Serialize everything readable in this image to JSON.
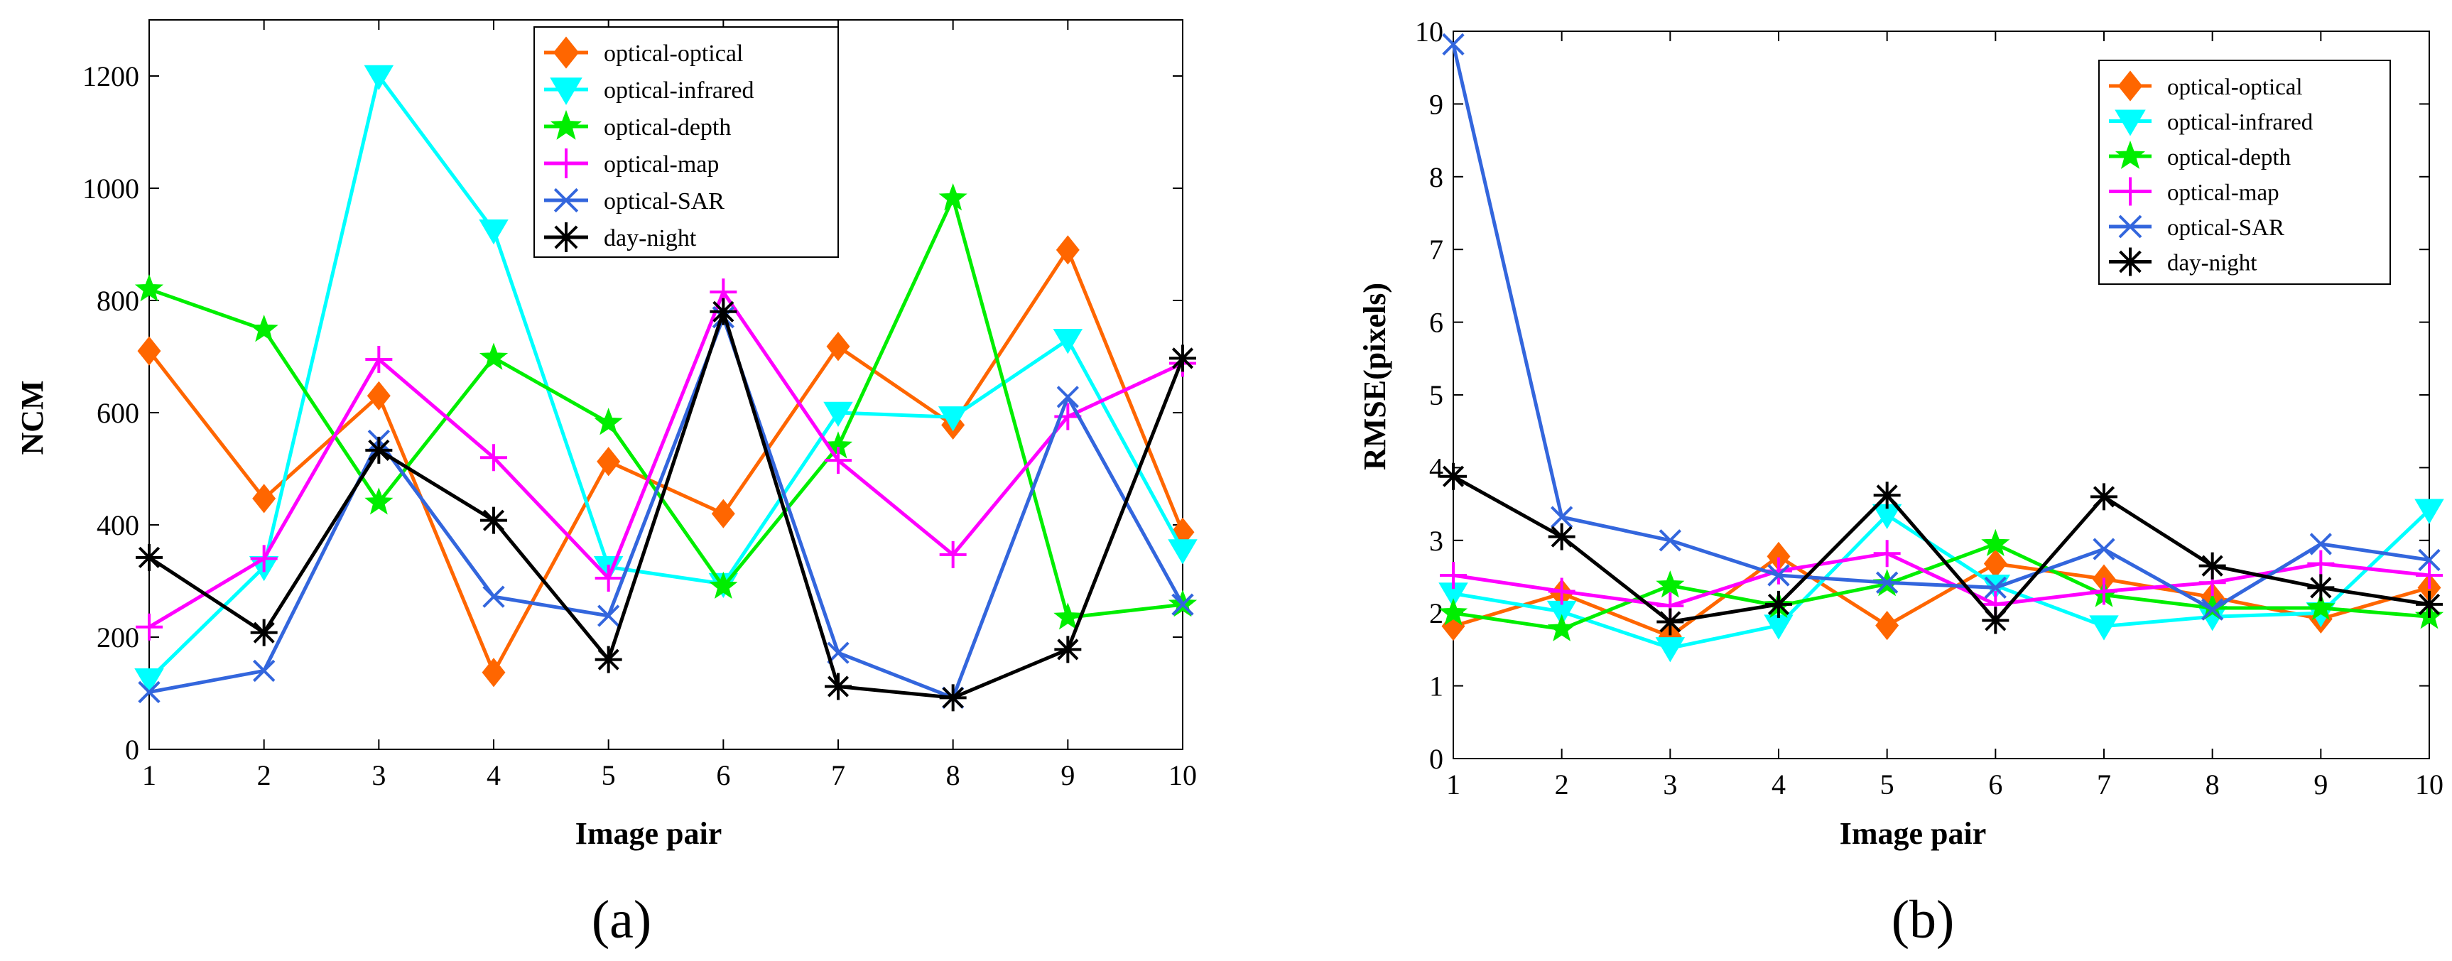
{
  "colors": {
    "optical-optical": "#ff6600",
    "optical-infrared": "#00ffff",
    "optical-depth": "#00ee00",
    "optical-map": "#ff00ff",
    "optical-SAR": "#3366dd",
    "day-night": "#000000"
  },
  "chart_data": [
    {
      "type": "line",
      "subfigure_label": "(a)",
      "title": "",
      "xlabel": "Image pair",
      "ylabel": "NCM",
      "xlim": [
        1,
        10
      ],
      "ylim": [
        0,
        1300
      ],
      "x_ticks": [
        "1",
        "2",
        "3",
        "4",
        "5",
        "6",
        "7",
        "8",
        "9",
        "10"
      ],
      "y_ticks": [
        "0",
        "200",
        "400",
        "600",
        "800",
        "1000",
        "1200"
      ],
      "y_tick_values": [
        0,
        200,
        400,
        600,
        800,
        1000,
        1200
      ],
      "legend_position": "top-center",
      "x": [
        1,
        2,
        3,
        4,
        5,
        6,
        7,
        8,
        9,
        10
      ],
      "series": [
        {
          "name": "optical-optical",
          "marker": "diamond",
          "values": [
            710,
            447,
            630,
            137,
            513,
            420,
            718,
            578,
            890,
            387
          ]
        },
        {
          "name": "optical-infrared",
          "marker": "triangle-down",
          "values": [
            125,
            325,
            1200,
            925,
            325,
            295,
            600,
            592,
            730,
            355
          ]
        },
        {
          "name": "optical-depth",
          "marker": "star5",
          "values": [
            820,
            748,
            440,
            698,
            582,
            290,
            540,
            982,
            235,
            258
          ]
        },
        {
          "name": "optical-map",
          "marker": "plus",
          "values": [
            218,
            340,
            695,
            520,
            305,
            815,
            515,
            347,
            593,
            688
          ]
        },
        {
          "name": "optical-SAR",
          "marker": "x",
          "values": [
            102,
            140,
            550,
            272,
            238,
            770,
            172,
            92,
            628,
            258
          ]
        },
        {
          "name": "day-night",
          "marker": "asterisk",
          "values": [
            342,
            208,
            533,
            408,
            160,
            780,
            112,
            92,
            178,
            697
          ]
        }
      ]
    },
    {
      "type": "line",
      "subfigure_label": "(b)",
      "title": "",
      "xlabel": "Image pair",
      "ylabel": "RMSE(pixels)",
      "xlim": [
        1,
        10
      ],
      "ylim": [
        0,
        10
      ],
      "x_ticks": [
        "1",
        "2",
        "3",
        "4",
        "5",
        "6",
        "7",
        "8",
        "9",
        "10"
      ],
      "y_ticks": [
        "0",
        "1",
        "2",
        "3",
        "4",
        "5",
        "6",
        "7",
        "8",
        "9",
        "10"
      ],
      "y_tick_values": [
        0,
        1,
        2,
        3,
        4,
        5,
        6,
        7,
        8,
        9,
        10
      ],
      "legend_position": "top-right",
      "x": [
        1,
        2,
        3,
        4,
        5,
        6,
        7,
        8,
        9,
        10
      ],
      "series": [
        {
          "name": "optical-optical",
          "marker": "diamond",
          "values": [
            1.82,
            2.27,
            1.68,
            2.78,
            1.83,
            2.68,
            2.47,
            2.22,
            1.92,
            2.35
          ]
        },
        {
          "name": "optical-infrared",
          "marker": "triangle-down",
          "values": [
            2.27,
            2.02,
            1.52,
            1.83,
            3.35,
            2.38,
            1.82,
            1.95,
            2.0,
            3.42
          ]
        },
        {
          "name": "optical-depth",
          "marker": "star5",
          "values": [
            2.0,
            1.78,
            2.38,
            2.1,
            2.4,
            2.95,
            2.25,
            2.07,
            2.07,
            1.95
          ]
        },
        {
          "name": "optical-map",
          "marker": "plus",
          "values": [
            2.52,
            2.3,
            2.1,
            2.58,
            2.82,
            2.12,
            2.3,
            2.42,
            2.68,
            2.52
          ]
        },
        {
          "name": "optical-SAR",
          "marker": "x",
          "values": [
            9.82,
            3.32,
            3.0,
            2.52,
            2.42,
            2.35,
            2.88,
            2.05,
            2.95,
            2.73
          ]
        },
        {
          "name": "day-night",
          "marker": "asterisk",
          "values": [
            3.88,
            3.05,
            1.88,
            2.12,
            3.62,
            1.9,
            3.6,
            2.65,
            2.35,
            2.12
          ]
        }
      ]
    }
  ]
}
